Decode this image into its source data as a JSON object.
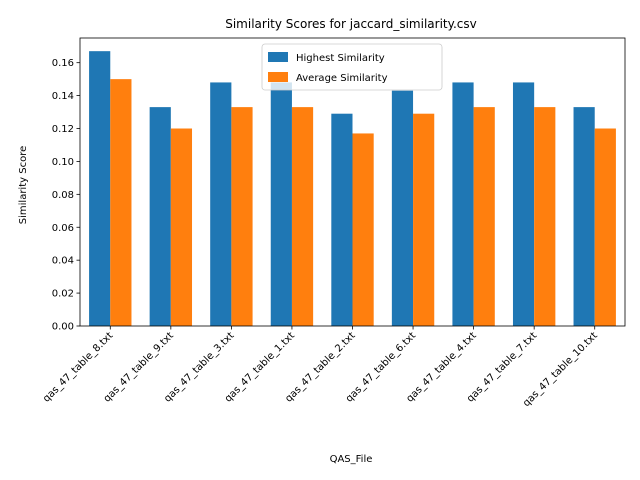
{
  "chart_data": {
    "type": "bar",
    "title": "Similarity Scores for jaccard_similarity.csv",
    "xlabel": "QAS_File",
    "ylabel": "Similarity Score",
    "ylim": [
      0,
      0.175
    ],
    "yticks": [
      "0.00",
      "0.02",
      "0.04",
      "0.06",
      "0.08",
      "0.10",
      "0.12",
      "0.14",
      "0.16"
    ],
    "categories": [
      "qas_47_table_8.txt",
      "qas_47_table_9.txt",
      "qas_47_table_3.txt",
      "qas_47_table_1.txt",
      "qas_47_table_2.txt",
      "qas_47_table_6.txt",
      "qas_47_table_4.txt",
      "qas_47_table_7.txt",
      "qas_47_table_10.txt"
    ],
    "series": [
      {
        "name": "Highest Similarity",
        "color": "#1f77b4",
        "values": [
          0.167,
          0.133,
          0.148,
          0.148,
          0.129,
          0.143,
          0.148,
          0.148,
          0.133
        ]
      },
      {
        "name": "Average Similarity",
        "color": "#ff7f0e",
        "values": [
          0.15,
          0.12,
          0.133,
          0.133,
          0.117,
          0.129,
          0.133,
          0.133,
          0.12
        ]
      }
    ],
    "legend": "upper-center",
    "grid": false
  }
}
